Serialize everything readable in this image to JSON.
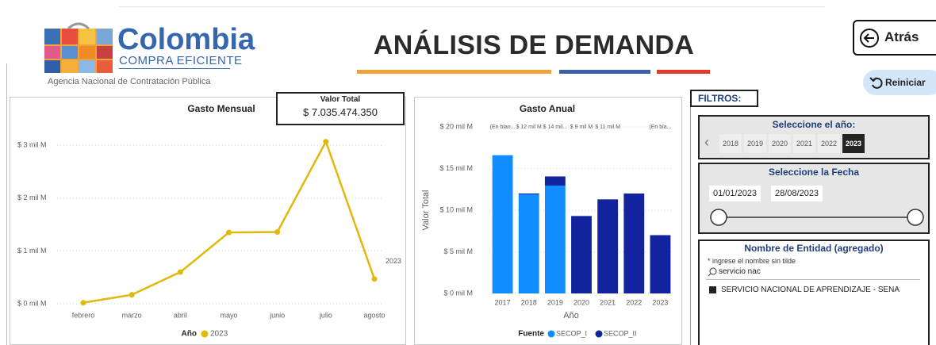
{
  "header": {
    "logo_name": "Colombia",
    "logo_subtitle": "COMPRA EFICIENTE",
    "agency": "Agencia Nacional de Contratación Pública",
    "title": "ANÁLISIS DE DEMANDA",
    "back_button": "Atrás",
    "reset_button": "Reiniciar"
  },
  "kpi": {
    "label": "Valor Total",
    "value": "$ 7.035.474.350"
  },
  "chart_data": [
    {
      "type": "line",
      "title": "Gasto Mensual",
      "categories": [
        "febrero",
        "marzo",
        "abril",
        "mayo",
        "junio",
        "julio",
        "agosto"
      ],
      "series": [
        {
          "name": "2023",
          "color": "#e2b80b",
          "values": [
            0.02,
            0.17,
            0.6,
            1.35,
            1.36,
            3.07,
            0.47
          ]
        }
      ],
      "legend_title": "Año",
      "ylim": [
        0,
        3.5
      ],
      "yticks": [
        {
          "value": 0,
          "label": "$ 0 mil M"
        },
        {
          "value": 1,
          "label": "$ 1 mil M"
        },
        {
          "value": 2,
          "label": "$ 2 mil M"
        },
        {
          "value": 3,
          "label": "$ 3 mil M"
        }
      ],
      "grid": true
    },
    {
      "type": "bar",
      "stacked": true,
      "title": "Gasto Anual",
      "x_label": "Año",
      "y_label": "Valor Total",
      "categories": [
        "2017",
        "2018",
        "2019",
        "2020",
        "2021",
        "2022",
        "2023"
      ],
      "series": [
        {
          "name": "SECOP_I",
          "color": "#118dff",
          "values": [
            16.6,
            11.9,
            12.95,
            null,
            null,
            null,
            null
          ]
        },
        {
          "name": "SECOP_II",
          "color": "#12239e",
          "values": [
            null,
            0.1,
            1.1,
            9.3,
            11.3,
            12.0,
            7.0
          ]
        }
      ],
      "total_labels": [
        "(En blan...",
        "$ 12 mil M",
        "$ 14 mil...",
        "$ 9 mil M",
        "$ 11 mil M",
        null,
        "(En bla..."
      ],
      "legend_title": "Fuente",
      "ylim": [
        0,
        20
      ],
      "yticks": [
        {
          "value": 0,
          "label": "$ 0 mil M"
        },
        {
          "value": 5,
          "label": "$ 5 mil M"
        },
        {
          "value": 10,
          "label": "$ 10 mil M"
        },
        {
          "value": 15,
          "label": "$ 15 mil M"
        },
        {
          "value": 20,
          "label": "$ 20 mil M"
        }
      ],
      "grid": true
    }
  ],
  "filters": {
    "title": "FILTROS:",
    "year": {
      "label": "Seleccione el año:",
      "options": [
        "2018",
        "2019",
        "2020",
        "2021",
        "2022",
        "2023"
      ],
      "selected": "2023"
    },
    "date": {
      "label": "Seleccione la Fecha",
      "start": "01/01/2023",
      "end": "28/08/2023"
    },
    "entity": {
      "label": "Nombre de Entidad (agregado)",
      "hint": "* ingrese el nombre sin tilde",
      "search": "servicio nac",
      "items": [
        {
          "label": "SERVICIO NACIONAL DE APRENDIZAJE - SENA",
          "checked": true
        }
      ]
    }
  }
}
